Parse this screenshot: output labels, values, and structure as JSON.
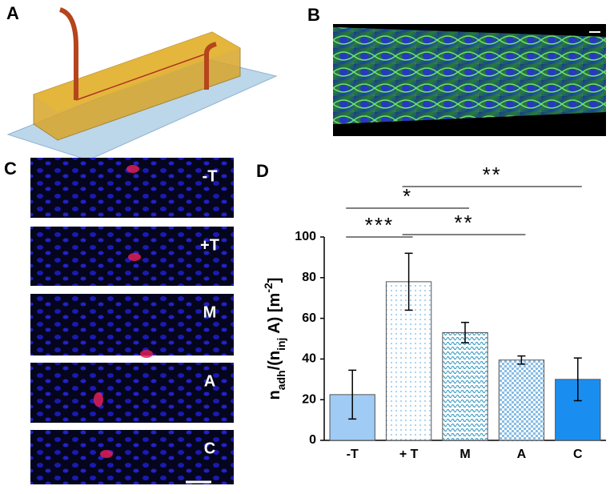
{
  "panels": {
    "A": "A",
    "B": "B",
    "C": "C",
    "D": "D"
  },
  "panel_c_labels": [
    "-T",
    "+T",
    "M",
    "A",
    "C"
  ],
  "chart_data": {
    "type": "bar",
    "categories": [
      "-T",
      "+ T",
      "M",
      "A",
      "C"
    ],
    "values": [
      22.5,
      78,
      53,
      39.5,
      30
    ],
    "errors": [
      12,
      14,
      5,
      2,
      10.5
    ],
    "colors": [
      "#9fcbf5",
      "#6fb6e8",
      "#3f9dc4",
      "#86bde6",
      "#1a8ef0"
    ],
    "y_label_parts": [
      "n",
      "adh",
      "/(n",
      "inj",
      " A) [m",
      "-2",
      "]"
    ],
    "ylim": [
      0,
      100
    ],
    "yticks": [
      0,
      20,
      40,
      60,
      80,
      100
    ],
    "annotations": [
      {
        "text": "***"
      },
      {
        "text": "**"
      },
      {
        "text": "*"
      },
      {
        "text": "**"
      }
    ]
  }
}
